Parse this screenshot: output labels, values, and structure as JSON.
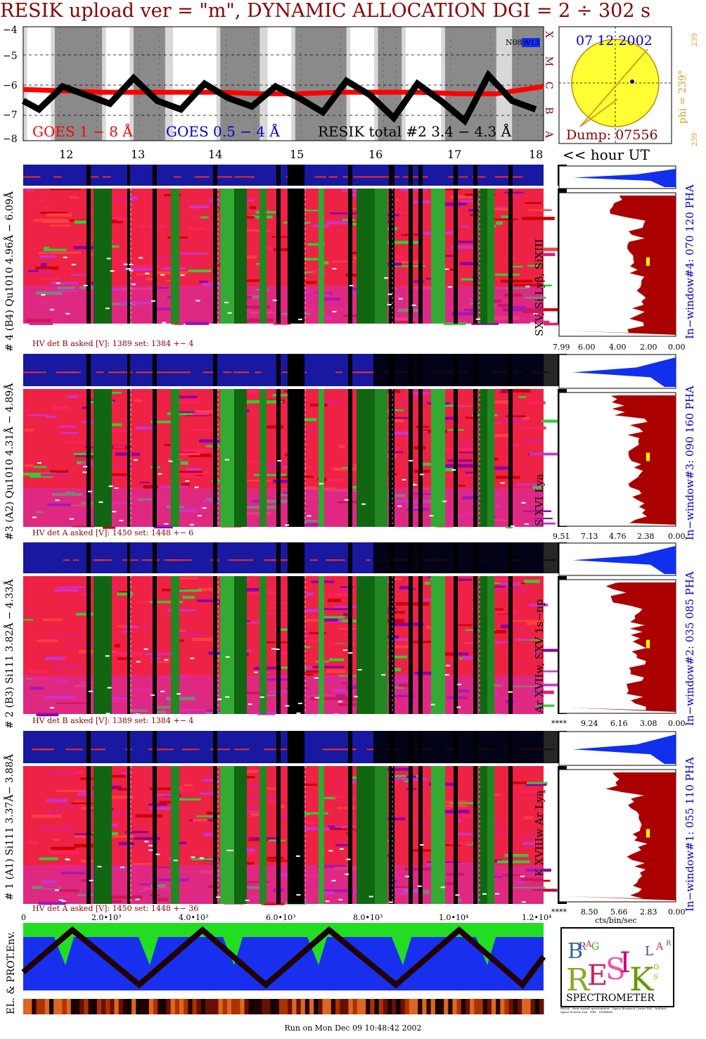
{
  "title": "RESIK upload ver = \"m\", DYNAMIC ALLOCATION  DGI =   2 ÷ 302 s",
  "goes": {
    "yticks": [
      "−4",
      "−5",
      "−6",
      "−7",
      "−8"
    ],
    "right_letters": [
      "X",
      "M",
      "C",
      "B",
      "A"
    ],
    "legend_goes18": "GOES 1 − 8 Å",
    "legend_goes054": "GOES 0.5 − 4 Å",
    "legend_resik": "RESIK total #2  3.4 − 4.3 Å",
    "corner_tag1": "N08",
    "corner_tag2": "W13"
  },
  "sun": {
    "date": "07 12 2002",
    "dump": "Dump: 07556",
    "phi": "phi = 239°",
    "phi_small1": "239",
    "phi_small2": "239"
  },
  "hours": {
    "labels": [
      "12",
      "13",
      "14",
      "15",
      "16",
      "17",
      "18"
    ],
    "unit_label": "<< hour UT"
  },
  "channels": [
    {
      "left_label": "# 4 (B4) Qu1010 4.96Å − 6.09Å",
      "line_label": "SXV, Si Lyβ, SiXIII",
      "window_label": "In−window#4:  070 120 PHA",
      "hv": "HV det B asked [V]:  1389 set:  1384  +−    4",
      "spec_ticks": [
        "7.99",
        "6.00",
        "4.00",
        "2.00",
        "0.00"
      ]
    },
    {
      "left_label": "#3 (A2) Qu1010  4.31Å − 4.89Å",
      "line_label": "S XVI Lya",
      "window_label": "In−window#3:  090 160 PHA",
      "hv": "HV det A asked [V]:  1450 set:  1448  +−    6",
      "spec_ticks": [
        "9.51",
        "7.13",
        "4.76",
        "2.38",
        "0.00"
      ]
    },
    {
      "left_label": "# 2 (B3) Si111  3.82Å − 4.33Å",
      "line_label": "Ar XVIIw,  SXV 1s−np",
      "window_label": "In−window#2:  035 085 PHA",
      "hv": "HV det B asked [V]:  1389 set:  1384  +−    4",
      "spec_ticks": [
        "****",
        "9.24",
        "6.16",
        "3.08",
        "0.00"
      ]
    },
    {
      "left_label": "# 1 (A1) Si111  3.37Å− 3.88Å",
      "line_label": "K XVIIIw  Ar Lya",
      "window_label": "In−window#1:  055 110 PHA",
      "hv": "HV det A asked [V]: 1450 set:  1448  +−  36",
      "spec_ticks": [
        "****",
        "8.50",
        "5.66",
        "2.83",
        "0.00"
      ]
    }
  ],
  "spec_xlabel": "cts/bin/sec",
  "time_axis": [
    "0",
    "2.0•10³",
    "4.0•10³",
    "6.0•10³",
    "8.0•10³",
    "1.0•10⁴",
    "1.2•10⁴"
  ],
  "env_label": "EL. & PROT.Env.",
  "logo": {
    "letters": "B R A G  R E S I K  S O L A R",
    "caption": "SPECTROMETER",
    "fine_print": "RESIK · Bent crystal spectrometer · Space Research Centre PAS · Mullard Space Science Lab · NRL · IZMIRAN"
  },
  "footer": "Run on Mon Dec 09 10:48:42 2002",
  "chart_data": [
    {
      "type": "line",
      "title": "RESIK upload ver = \"m\", DYNAMIC ALLOCATION  DGI =   2 ÷ 302 s",
      "ylabel": "",
      "ylim": [
        -8,
        -4
      ],
      "yscale": "log flux class (X,M,C,B,A)",
      "series": [
        {
          "name": "GOES 1 − 8 Å",
          "color": "#ff0000",
          "x": [
            11.5,
            12.0,
            12.5,
            13.0,
            13.5,
            14.0,
            14.5,
            15.0,
            15.5,
            16.0,
            16.5,
            17.0,
            17.5,
            18.1
          ],
          "y": [
            -6.2,
            -6.25,
            -6.3,
            -6.3,
            -6.3,
            -6.3,
            -6.35,
            -6.35,
            -6.3,
            -6.3,
            -6.3,
            -6.35,
            -6.35,
            -6.1
          ]
        },
        {
          "name": "RESIK total #2  3.4 − 4.3 Å",
          "color": "#000000",
          "x": [
            11.5,
            11.7,
            12.0,
            12.3,
            12.6,
            12.9,
            13.2,
            13.5,
            13.8,
            14.1,
            14.4,
            14.7,
            15.0,
            15.3,
            15.6,
            15.9,
            16.2,
            16.5,
            16.8,
            17.1,
            17.4,
            17.7,
            18.0
          ],
          "y": [
            -6.6,
            -6.9,
            -6.1,
            -6.4,
            -6.7,
            -5.8,
            -6.6,
            -6.9,
            -6.0,
            -6.5,
            -6.8,
            -6.1,
            -6.5,
            -7.0,
            -5.9,
            -6.4,
            -7.2,
            -6.0,
            -6.6,
            -7.3,
            -5.7,
            -6.6,
            -6.9
          ]
        }
      ],
      "background": "night/SAA shading bands"
    }
  ]
}
